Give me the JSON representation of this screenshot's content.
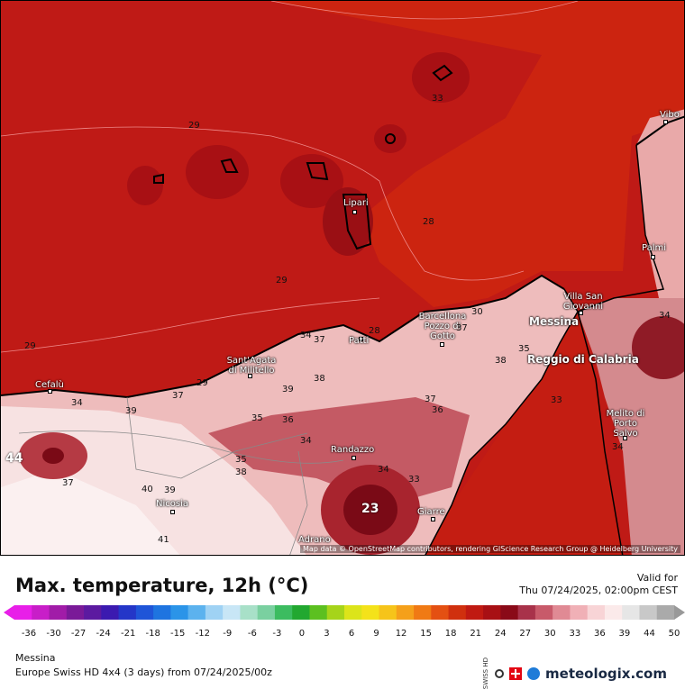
{
  "map": {
    "credit": "Map data © OpenStreetMap contributors, rendering GIScience Research Group @ Heidelberg University",
    "cities": [
      {
        "name": "Vibo",
        "big": false
      },
      {
        "name": "Lipari",
        "big": false
      },
      {
        "name": "Palmi",
        "big": false
      },
      {
        "name": "Villa San Giovanni",
        "big": false
      },
      {
        "name": "Messina",
        "big": true
      },
      {
        "name": "Barcellona Pozzo di Gotto",
        "big": false
      },
      {
        "name": "Patti",
        "big": false
      },
      {
        "name": "Reggio di Calabria",
        "big": true
      },
      {
        "name": "Sant'Agata di Militello",
        "big": false
      },
      {
        "name": "Cefalù",
        "big": false
      },
      {
        "name": "Melito di Porto Salvo",
        "big": false
      },
      {
        "name": "Randazzo",
        "big": false
      },
      {
        "name": "Nicosia",
        "big": false
      },
      {
        "name": "Giarre",
        "big": false
      },
      {
        "name": "Adrano",
        "big": false
      }
    ],
    "isolines": [
      "29",
      "29",
      "28",
      "29",
      "33",
      "29",
      "34",
      "37",
      "28",
      "37",
      "38",
      "35",
      "34",
      "34",
      "37",
      "39",
      "38",
      "39",
      "37",
      "36",
      "35",
      "36",
      "34",
      "35",
      "38",
      "34",
      "33",
      "37",
      "40",
      "39",
      "41",
      "33",
      "23",
      "44",
      "34",
      "30"
    ]
  },
  "legend": {
    "title": "Max. temperature, 12h (°C)",
    "valid_label": "Valid for",
    "valid_time": "Thu 07/24/2025, 02:00pm CEST",
    "ticks": [
      "-36",
      "-30",
      "-27",
      "-24",
      "-21",
      "-18",
      "-15",
      "-12",
      "-9",
      "-6",
      "-3",
      "0",
      "3",
      "6",
      "9",
      "12",
      "15",
      "18",
      "21",
      "24",
      "27",
      "30",
      "33",
      "36",
      "39",
      "44",
      "50"
    ]
  },
  "footer": {
    "location": "Messina",
    "model": "Europe Swiss HD 4x4 (3 days) from 07/24/2025/00z",
    "side_label": "SWISS HD",
    "brand": "meteologix.com"
  },
  "colors": {
    "sea_dark": "#b81414",
    "sea": "#c41d12",
    "land_hot": "#e8a6a6",
    "land_very_hot": "#f7dede",
    "peak": "#8a0a18"
  }
}
